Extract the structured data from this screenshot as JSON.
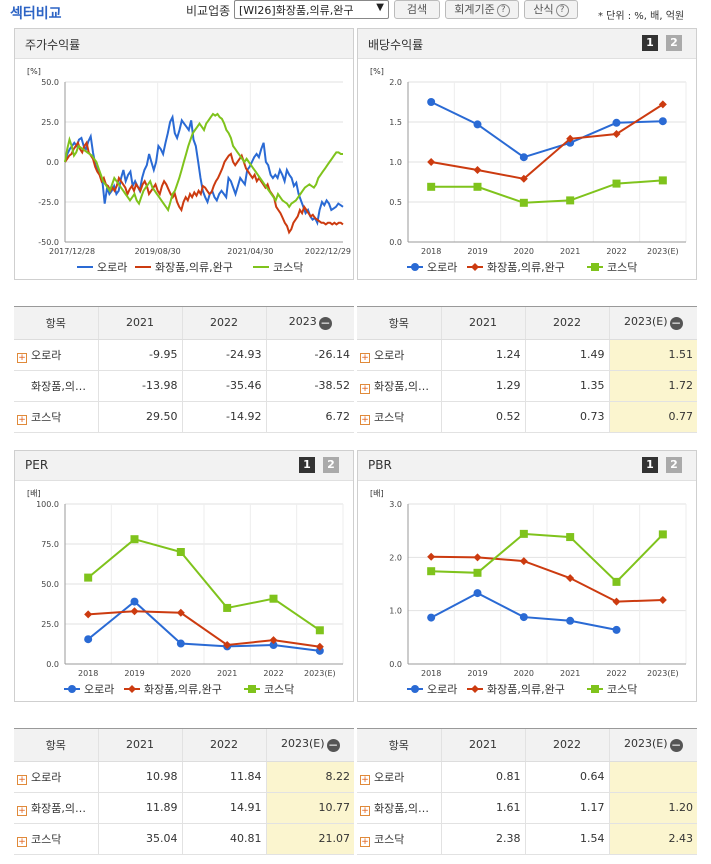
{
  "header": {
    "title": "섹터비교",
    "compare_label": "비교업종",
    "industry_select": "[WI26]화장품,의류,완구",
    "search_btn": "검색",
    "accounting_btn": "회계기준",
    "formula_btn": "산식",
    "unit_text": "* 단위 : %, 배, 억원"
  },
  "colors": {
    "series1": "#2a6ad4",
    "series2": "#cc3b10",
    "series3": "#7fc31c"
  },
  "panels": {
    "stock_return": {
      "title": "주가수익률",
      "unit": "[%]",
      "legend": [
        "오로라",
        "화장품,의류,완구",
        "코스닥"
      ]
    },
    "dividend": {
      "title": "배당수익률",
      "unit": "[%]",
      "btn1": "1",
      "btn2": "2",
      "legend": [
        "오로라",
        "화장품,의류,완구",
        "코스닥"
      ]
    },
    "per": {
      "title": "PER",
      "unit": "[배]",
      "btn1": "1",
      "btn2": "2",
      "legend": [
        "오로라",
        "화장품,의류,완구",
        "코스닥"
      ]
    },
    "pbr": {
      "title": "PBR",
      "unit": "[배]",
      "btn1": "1",
      "btn2": "2",
      "legend": [
        "오로라",
        "화장품,의류,완구",
        "코스닥"
      ]
    }
  },
  "chart_data": [
    {
      "type": "line",
      "ylabel": "[%]",
      "ylim": [
        -50,
        50
      ],
      "yticks": [
        "50.0",
        "25.0",
        "0.0",
        "-25.0",
        "-50.0"
      ],
      "xticks": [
        "2017/12/28",
        "2019/08/30",
        "2021/04/30",
        "2022/12/29"
      ],
      "series": [
        {
          "name": "오로라",
          "values": [
            0,
            5,
            8,
            10,
            12,
            10,
            14,
            15,
            10,
            8,
            13,
            16,
            6,
            -2,
            -5,
            -8,
            -12,
            -26,
            -16,
            -20,
            -18,
            -15,
            -20,
            -18,
            -10,
            -5,
            -12,
            -8,
            -6,
            -15,
            -12,
            -15,
            -18,
            -10,
            -5,
            -2,
            5,
            0,
            -5,
            0,
            10,
            8,
            5,
            12,
            18,
            25,
            28,
            18,
            15,
            20,
            26,
            24,
            22,
            20,
            26,
            14,
            10,
            0,
            -10,
            -18,
            -22,
            -25,
            -20,
            -18,
            -22,
            -24,
            -20,
            -18,
            -20,
            -22,
            -10,
            -12,
            -16,
            -20,
            -15,
            -10,
            -12,
            -14,
            -5,
            -3,
            0,
            3,
            5,
            3,
            8,
            12,
            0,
            -2,
            -8,
            -10,
            -8,
            -10,
            -5,
            -8,
            -12,
            -5,
            -8,
            -10,
            -15,
            -13,
            -20,
            -24,
            -28,
            -32,
            -30,
            -34,
            -36,
            -35,
            -38,
            -30,
            -25,
            -27,
            -24,
            -26,
            -30,
            -29,
            -28,
            -26,
            -27,
            -28
          ],
          "source_count": 130
        },
        {
          "name": "화장품,의류,완구",
          "values": [
            0,
            2,
            4,
            5,
            8,
            10,
            12,
            8,
            6,
            10,
            12,
            6,
            4,
            2,
            -3,
            -6,
            -8,
            -12,
            -10,
            -14,
            -15,
            -18,
            -16,
            -18,
            -15,
            -10,
            -12,
            -14,
            -16,
            -20,
            -17,
            -15,
            -18,
            -14,
            -16,
            -18,
            -14,
            -12,
            -15,
            -20,
            -18,
            -16,
            -14,
            -18,
            -20,
            -15,
            -12,
            -14,
            -17,
            -20,
            -22,
            -20,
            -25,
            -28,
            -30,
            -25,
            -22,
            -24,
            -20,
            -22,
            -19,
            -21,
            -18,
            -20,
            -15,
            -16,
            -18,
            -20,
            -19,
            -15,
            -12,
            -10,
            -7,
            -4,
            0,
            2,
            4,
            5,
            0,
            -2,
            0,
            2,
            4,
            0,
            -4,
            -6,
            -8,
            -10,
            -8,
            -12,
            -10,
            -12,
            -14,
            -16,
            -14,
            -18,
            -20,
            -22,
            -28,
            -30,
            -32,
            -35,
            -38,
            -40,
            -44,
            -42,
            -38,
            -36,
            -34,
            -30,
            -32,
            -28,
            -30,
            -32,
            -34,
            -33,
            -35,
            -36,
            -37,
            -38,
            -38,
            -39,
            -38,
            -38,
            -39,
            -38,
            -39,
            -38,
            -38,
            -39
          ]
        },
        {
          "name": "코스닥",
          "values": [
            0,
            8,
            14,
            10,
            4,
            6,
            10,
            9,
            8,
            7,
            6,
            5,
            4,
            2,
            0,
            -4,
            -8,
            -12,
            -14,
            -16,
            -18,
            -14,
            -10,
            -12,
            -14,
            -16,
            -18,
            -20,
            -22,
            -24,
            -22,
            -20,
            -24,
            -26,
            -22,
            -18,
            -16,
            -14,
            -12,
            -16,
            -18,
            -20,
            -22,
            -24,
            -26,
            -28,
            -30,
            -25,
            -20,
            -18,
            -14,
            -10,
            -5,
            0,
            5,
            10,
            14,
            18,
            20,
            22,
            24,
            22,
            20,
            24,
            26,
            28,
            30,
            29,
            30,
            28,
            27,
            24,
            20,
            18,
            15,
            10,
            8,
            6,
            4,
            2,
            0,
            2,
            0,
            -2,
            -4,
            -6,
            -8,
            -10,
            -12,
            -14,
            -16,
            -18,
            -20,
            -22,
            -24,
            -20,
            -22,
            -24,
            -25,
            -26,
            -28,
            -26,
            -25,
            -24,
            -22,
            -20,
            -18,
            -16,
            -15,
            -14,
            -15,
            -16,
            -14,
            -10,
            -8,
            -6,
            -4,
            -2,
            0,
            2,
            4,
            6,
            6,
            5,
            5
          ]
        }
      ]
    },
    {
      "type": "line",
      "ylabel": "[%]",
      "ylim": [
        0,
        2.0
      ],
      "yticks": [
        "2.0",
        "1.5",
        "1.0",
        "0.5",
        "0.0"
      ],
      "categories": [
        "2018",
        "2019",
        "2020",
        "2021",
        "2022",
        "2023(E)"
      ],
      "series": [
        {
          "name": "오로라",
          "values": [
            1.75,
            1.47,
            1.06,
            1.24,
            1.49,
            1.51
          ]
        },
        {
          "name": "화장품,의류,완구",
          "values": [
            1.0,
            0.9,
            0.79,
            1.29,
            1.35,
            1.72
          ]
        },
        {
          "name": "코스닥",
          "values": [
            0.69,
            0.69,
            0.49,
            0.52,
            0.73,
            0.77
          ]
        }
      ]
    },
    {
      "type": "line",
      "ylabel": "[배]",
      "ylim": [
        0,
        100
      ],
      "yticks": [
        "100.0",
        "75.0",
        "50.0",
        "25.0",
        "0.0"
      ],
      "categories": [
        "2018",
        "2019",
        "2020",
        "2021",
        "2022",
        "2023(E)"
      ],
      "series": [
        {
          "name": "오로라",
          "values": [
            15.5,
            39.0,
            12.8,
            10.98,
            11.84,
            8.22
          ]
        },
        {
          "name": "화장품,의류,완구",
          "values": [
            31.0,
            33.0,
            32.0,
            11.89,
            14.91,
            10.77
          ]
        },
        {
          "name": "코스닥",
          "values": [
            54.0,
            78.0,
            70.0,
            35.04,
            40.81,
            21.07
          ]
        }
      ]
    },
    {
      "type": "line",
      "ylabel": "[배]",
      "ylim": [
        0,
        3.0
      ],
      "yticks": [
        "3.0",
        "2.0",
        "1.0",
        "0.0"
      ],
      "categories": [
        "2018",
        "2019",
        "2020",
        "2021",
        "2022",
        "2023(E)"
      ],
      "series": [
        {
          "name": "오로라",
          "values": [
            0.87,
            1.33,
            0.88,
            0.81,
            0.64,
            null
          ]
        },
        {
          "name": "화장품,의류,완구",
          "values": [
            2.01,
            2.0,
            1.93,
            1.61,
            1.17,
            1.2
          ]
        },
        {
          "name": "코스닥",
          "values": [
            1.74,
            1.71,
            2.44,
            2.38,
            1.54,
            2.43
          ]
        }
      ]
    }
  ],
  "tables": {
    "stock_return": {
      "headers": [
        "항목",
        "2021",
        "2022",
        "2023"
      ],
      "rows": [
        {
          "name": "오로라",
          "v": [
            "-9.95",
            "-24.93",
            "-26.14"
          ]
        },
        {
          "name": "화장품,의…",
          "v": [
            "-13.98",
            "-35.46",
            "-38.52"
          ]
        },
        {
          "name": "코스닥",
          "v": [
            "29.50",
            "-14.92",
            "6.72"
          ]
        }
      ]
    },
    "dividend": {
      "headers": [
        "항목",
        "2021",
        "2022",
        "2023(E)"
      ],
      "rows": [
        {
          "name": "오로라",
          "v": [
            "1.24",
            "1.49",
            "1.51"
          ]
        },
        {
          "name": "화장품,의…",
          "v": [
            "1.29",
            "1.35",
            "1.72"
          ]
        },
        {
          "name": "코스닥",
          "v": [
            "0.52",
            "0.73",
            "0.77"
          ]
        }
      ]
    },
    "per": {
      "headers": [
        "항목",
        "2021",
        "2022",
        "2023(E)"
      ],
      "rows": [
        {
          "name": "오로라",
          "v": [
            "10.98",
            "11.84",
            "8.22"
          ]
        },
        {
          "name": "화장품,의…",
          "v": [
            "11.89",
            "14.91",
            "10.77"
          ]
        },
        {
          "name": "코스닥",
          "v": [
            "35.04",
            "40.81",
            "21.07"
          ]
        }
      ]
    },
    "pbr": {
      "headers": [
        "항목",
        "2021",
        "2022",
        "2023(E)"
      ],
      "rows": [
        {
          "name": "오로라",
          "v": [
            "0.81",
            "0.64",
            ""
          ]
        },
        {
          "name": "화장품,의…",
          "v": [
            "1.61",
            "1.17",
            "1.20"
          ]
        },
        {
          "name": "코스닥",
          "v": [
            "2.38",
            "1.54",
            "2.43"
          ]
        }
      ]
    }
  }
}
